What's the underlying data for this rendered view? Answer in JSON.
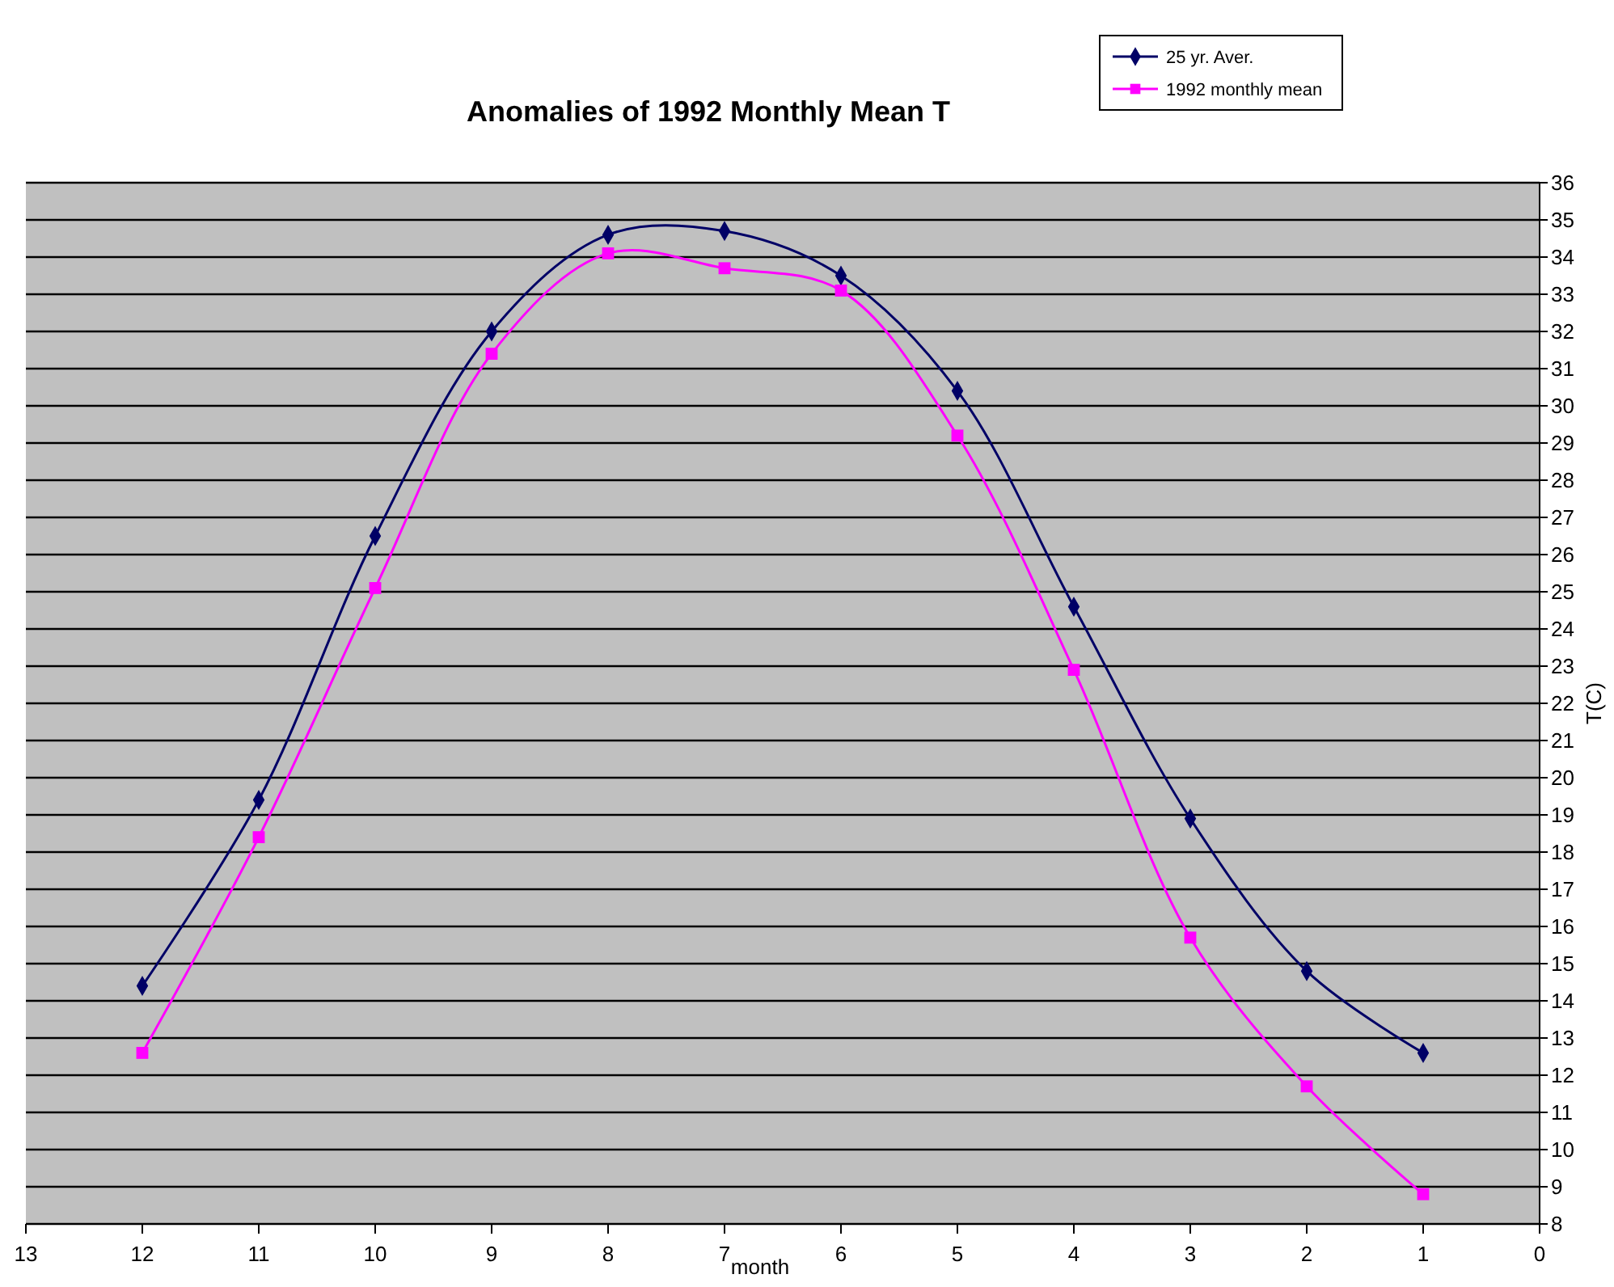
{
  "chart_data": {
    "type": "line",
    "title": "Anomalies of 1992 Monthly Mean T",
    "xlabel": "month",
    "ylabel": "T(C)",
    "x": [
      12,
      11,
      10,
      9,
      8,
      7,
      6,
      5,
      4,
      3,
      2,
      1
    ],
    "series": [
      {
        "name": "25 yr. Aver.",
        "color": "#000066",
        "marker": "diamond",
        "values": [
          14.4,
          19.4,
          26.5,
          32.0,
          34.6,
          34.7,
          33.5,
          30.4,
          24.6,
          18.9,
          14.8,
          12.6
        ]
      },
      {
        "name": "1992 monthly mean",
        "color": "#ff00ff",
        "marker": "square",
        "values": [
          12.6,
          18.4,
          25.1,
          31.4,
          34.1,
          33.7,
          33.1,
          29.2,
          22.9,
          15.7,
          11.7,
          8.8
        ]
      }
    ],
    "xlim": [
      13,
      0
    ],
    "xticks": [
      13,
      12,
      11,
      10,
      9,
      8,
      7,
      6,
      5,
      4,
      3,
      2,
      1,
      0
    ],
    "ylim": [
      8,
      36
    ],
    "yticks": [
      8,
      9,
      10,
      11,
      12,
      13,
      14,
      15,
      16,
      17,
      18,
      19,
      20,
      21,
      22,
      23,
      24,
      25,
      26,
      27,
      28,
      29,
      30,
      31,
      32,
      33,
      34,
      35,
      36
    ],
    "grid": "y",
    "legend": "top right",
    "line_style": "solid"
  }
}
